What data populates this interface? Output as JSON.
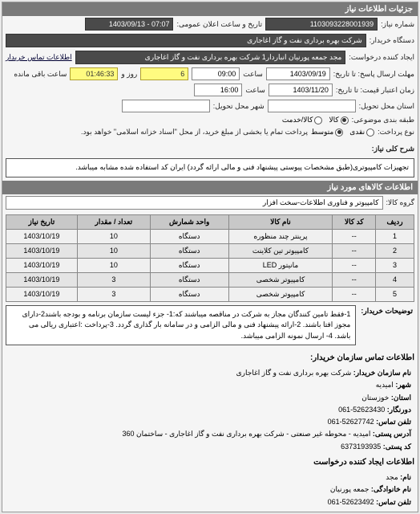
{
  "header": {
    "title": "جزئیات اطلاعات نیاز"
  },
  "top": {
    "reqNoLabel": "شماره نیاز:",
    "reqNo": "1103093228001939",
    "announceLabel": "تاریخ و ساعت اعلان عمومی:",
    "announceValue": "07:07 - 1403/09/13",
    "buyerLabel": "دستگاه خریدار:",
    "buyerValue": "شرکت بهره برداری نفت و گاز اغاجاری",
    "requesterLabel": "ایجاد کننده درخواست:",
    "requesterValue": "مجد جمعه پورنیان انباردار1 شرکت بهره برداری نفت و گاز اغاجاری",
    "contactLinkLabel": "اطلاعات تماس خریدار",
    "deadlineLabel": "مهلت ارسال پاسخ: تا تاریخ:",
    "deadlineDate": "1403/09/19",
    "timeLabel": "ساعت",
    "deadlineTime": "09:00",
    "remainDays": "6",
    "remainDaysLabel": "روز و",
    "remainTime": "01:46:33",
    "remainSuffix": "ساعت باقی مانده",
    "validLabel": "زمان اعتبار قیمت: تا تاریخ:",
    "validDate": "1403/11/20",
    "validTime": "16:00",
    "deliveryPlaceLabel": "استان محل تحویل:",
    "deliveryCityLabel": "شهر محل تحویل:",
    "packLabel": "طبقه بندی موضوعی:",
    "packOptions": [
      {
        "label": "کالا",
        "checked": true
      },
      {
        "label": "کالا/خدمت",
        "checked": false
      }
    ],
    "payLabel": "نوع پرداخت:",
    "payOptions": [
      {
        "label": "نقدی",
        "checked": false
      },
      {
        "label": "متوسط",
        "checked": true
      }
    ],
    "payNote": "پرداخت تمام یا بخشی از مبلغ خرید، از محل \"اسناد خزانه اسلامی\" خواهد بود."
  },
  "brief": {
    "label": "شرح کلی نیاز:",
    "text": "تجهیزات کامپیوتری(طبق مشخصات پیوستی پیشنهاد فنی و مالی ارائه گردد) ایران کد استفاده شده مشابه میباشد."
  },
  "itemsHeader": "اطلاعات کالاهای مورد نیاز",
  "groupLabel": "گروه کالا:",
  "groupValue": "کامپیوتر و فناوری اطلاعات-سخت افزار",
  "table": {
    "columns": [
      "ردیف",
      "کد کالا",
      "نام کالا",
      "واحد شمارش",
      "تعداد / مقدار",
      "تاریخ نیاز"
    ],
    "rows": [
      [
        "1",
        "--",
        "پرینتر چند منظوره",
        "دستگاه",
        "10",
        "1403/10/19"
      ],
      [
        "2",
        "--",
        "کامپیوتر تین کلاینت",
        "دستگاه",
        "10",
        "1403/10/19"
      ],
      [
        "3",
        "--",
        "مانیتور LED",
        "دستگاه",
        "10",
        "1403/10/19"
      ],
      [
        "4",
        "--",
        "کامپیوتر شخصی",
        "دستگاه",
        "3",
        "1403/10/19"
      ],
      [
        "5",
        "--",
        "کامپیوتر شخصی",
        "دستگاه",
        "3",
        "1403/10/19"
      ]
    ]
  },
  "notes": {
    "label": "توضیحات خریدار:",
    "text": "1-فقط تامین کنندگان مجاز به شرکت در مناقصه میباشند که:1- جزء لیست سازمان برنامه و بودجه باشند2-دارای مجوز افتا باشند. 2-ارائه پیشنهاد فنی و مالی الزامی و در سامانه بار گذاری گردد. 3-پرداخت :اعتباری ریالی می باشد. 4- ارسال نمونه الزامی میباشد."
  },
  "contactHeader": "اطلاعات تماس سازمان خریدار:",
  "contact": {
    "orgLabel": "نام سازمان خریدار:",
    "org": "شرکت بهره برداری نفت و گاز اغاجاری",
    "cityLabel": "شهر:",
    "city": "امیدیه",
    "provinceLabel": "استان:",
    "province": "خوزستان",
    "faxLabel": "دورنگار:",
    "fax": "52623430-061",
    "telLabel": "تلفن تماس:",
    "tel": "52627742-061",
    "addrLabel": "آدرس پستی:",
    "addr": "امیدیه - محوطه غیر صنعتی - شرکت بهره برداری نفت و گاز اغاجاری - ساختمان 360",
    "zipLabel": "کد پستی:",
    "zip": "6373193935"
  },
  "creatorHeader": "اطلاعات ایجاد کننده درخواست",
  "creator": {
    "nameLabel": "نام:",
    "name": "مجد",
    "surnameLabel": "نام خانوادگی:",
    "surname": "جمعه پورنیان",
    "telLabel": "تلفن تماس:",
    "tel": "52623492-061"
  }
}
